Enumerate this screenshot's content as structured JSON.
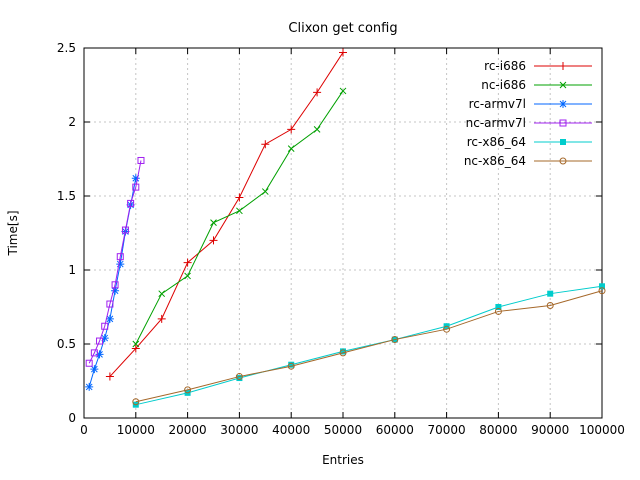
{
  "chart_data": {
    "type": "line",
    "title": "Clixon get config",
    "xlabel": "Entries",
    "ylabel": "Time[s]",
    "xlim": [
      0,
      100000
    ],
    "ylim": [
      0,
      2.5
    ],
    "x_ticks": [
      0,
      10000,
      20000,
      30000,
      40000,
      50000,
      60000,
      70000,
      80000,
      90000,
      100000
    ],
    "x_tick_labels": [
      "0",
      "10000",
      "20000",
      "30000",
      "40000",
      "50000",
      "60000",
      "70000",
      "80000",
      "90000",
      "100000"
    ],
    "y_ticks": [
      0,
      0.5,
      1,
      1.5,
      2,
      2.5
    ],
    "y_tick_labels": [
      "0",
      "0.5",
      "1",
      "1.5",
      "2",
      "2.5"
    ],
    "grid": true,
    "legend_position": "top-right",
    "series": [
      {
        "name": "rc-i686",
        "color": "#dd0000",
        "marker": "plus",
        "x": [
          5000,
          10000,
          15000,
          20000,
          25000,
          30000,
          35000,
          40000,
          45000,
          50000
        ],
        "y": [
          0.28,
          0.47,
          0.67,
          1.05,
          1.2,
          1.49,
          1.85,
          1.95,
          2.2,
          2.47
        ]
      },
      {
        "name": "nc-i686",
        "color": "#00a000",
        "marker": "cross",
        "x": [
          10000,
          15000,
          20000,
          25000,
          30000,
          35000,
          40000,
          45000,
          50000
        ],
        "y": [
          0.5,
          0.84,
          0.96,
          1.32,
          1.4,
          1.53,
          1.82,
          1.95,
          2.21
        ]
      },
      {
        "name": "rc-armv7l",
        "color": "#0066ff",
        "marker": "asterisk",
        "x": [
          1000,
          2000,
          3000,
          4000,
          5000,
          6000,
          7000,
          8000,
          9000,
          10000
        ],
        "y": [
          0.21,
          0.33,
          0.43,
          0.54,
          0.67,
          0.86,
          1.04,
          1.26,
          1.44,
          1.62
        ]
      },
      {
        "name": "nc-armv7l",
        "color": "#a020f0",
        "marker": "square-open",
        "x": [
          1000,
          2000,
          3000,
          4000,
          5000,
          6000,
          7000,
          8000,
          9000,
          10000,
          11000
        ],
        "y": [
          0.37,
          0.44,
          0.52,
          0.62,
          0.77,
          0.9,
          1.09,
          1.27,
          1.45,
          1.56,
          1.74
        ]
      },
      {
        "name": "rc-x86_64",
        "color": "#00cccc",
        "marker": "square-filled",
        "x": [
          10000,
          20000,
          30000,
          40000,
          50000,
          60000,
          70000,
          80000,
          90000,
          100000
        ],
        "y": [
          0.09,
          0.17,
          0.27,
          0.36,
          0.45,
          0.53,
          0.62,
          0.75,
          0.84,
          0.89
        ]
      },
      {
        "name": "nc-x86_64",
        "color": "#a5682a",
        "marker": "circle-open",
        "x": [
          10000,
          20000,
          30000,
          40000,
          50000,
          60000,
          70000,
          80000,
          90000,
          100000
        ],
        "y": [
          0.11,
          0.19,
          0.28,
          0.35,
          0.44,
          0.53,
          0.6,
          0.72,
          0.76,
          0.86
        ]
      }
    ]
  }
}
